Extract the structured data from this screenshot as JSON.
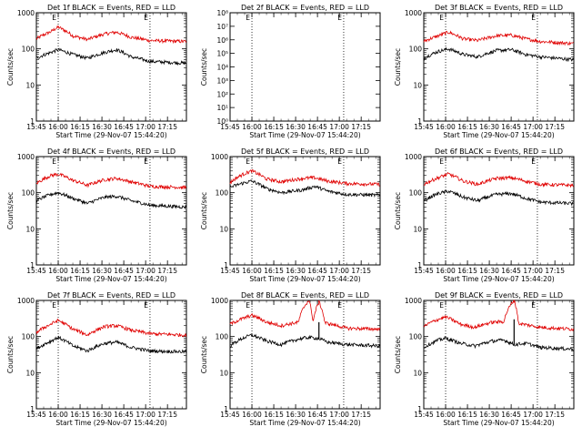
{
  "chart_data": {
    "type": "line",
    "layout": "grid 3x3",
    "yscale": "log",
    "ylabel": "Counts/sec",
    "xlabel": "Start Time (29-Nov-07 15:44:20)",
    "xticks": [
      "15:45",
      "16:00",
      "16:15",
      "16:30",
      "16:45",
      "17:00",
      "17:15"
    ],
    "xtick_minutes": [
      45,
      60,
      75,
      90,
      105,
      120,
      135
    ],
    "x_range_minutes": [
      45,
      148
    ],
    "vlines_minutes": [
      60,
      123
    ],
    "vline_marker": "E",
    "series_names": [
      "Events (black)",
      "LLD (red)"
    ],
    "colors": {
      "events": "#000000",
      "lld": "#e00000"
    },
    "panels": [
      {
        "title": "Det 1f BLACK = Events, RED = LLD",
        "ylim": [
          1,
          1000
        ],
        "yticks": [
          "1",
          "10",
          "100",
          "1000"
        ],
        "yexp": [
          0,
          1,
          2,
          3
        ],
        "events_points": [
          [
            45,
            55
          ],
          [
            55,
            80
          ],
          [
            60,
            95
          ],
          [
            70,
            70
          ],
          [
            80,
            55
          ],
          [
            92,
            80
          ],
          [
            100,
            95
          ],
          [
            110,
            60
          ],
          [
            123,
            45
          ],
          [
            148,
            40
          ]
        ],
        "lld_points": [
          [
            45,
            190
          ],
          [
            55,
            300
          ],
          [
            60,
            400
          ],
          [
            70,
            230
          ],
          [
            80,
            180
          ],
          [
            92,
            260
          ],
          [
            100,
            290
          ],
          [
            110,
            210
          ],
          [
            123,
            170
          ],
          [
            148,
            160
          ]
        ],
        "spikes": []
      },
      {
        "title": "Det 2f BLACK = Events, RED = LLD",
        "ylim": [
          1,
          100000000
        ],
        "yticks": [
          "10⁰",
          "10¹",
          "10²",
          "10³",
          "10⁴",
          "10⁵",
          "10⁶",
          "10⁷",
          "10⁸"
        ],
        "yexp": [
          0,
          1,
          2,
          3,
          4,
          5,
          6,
          7,
          8
        ],
        "events_points": [],
        "lld_points": [],
        "spikes": []
      },
      {
        "title": "Det 3f BLACK = Events, RED = LLD",
        "ylim": [
          1,
          1000
        ],
        "yticks": [
          "1",
          "10",
          "100",
          "1000"
        ],
        "yexp": [
          0,
          1,
          2,
          3
        ],
        "events_points": [
          [
            45,
            55
          ],
          [
            55,
            85
          ],
          [
            62,
            100
          ],
          [
            72,
            70
          ],
          [
            82,
            60
          ],
          [
            95,
            90
          ],
          [
            105,
            95
          ],
          [
            115,
            70
          ],
          [
            125,
            60
          ],
          [
            148,
            50
          ]
        ],
        "lld_points": [
          [
            45,
            160
          ],
          [
            55,
            230
          ],
          [
            62,
            290
          ],
          [
            72,
            190
          ],
          [
            82,
            170
          ],
          [
            95,
            230
          ],
          [
            105,
            240
          ],
          [
            115,
            190
          ],
          [
            125,
            160
          ],
          [
            148,
            140
          ]
        ],
        "spikes": []
      },
      {
        "title": "Det 4f BLACK = Events, RED = LLD",
        "ylim": [
          1,
          1000
        ],
        "yticks": [
          "1",
          "10",
          "100",
          "1000"
        ],
        "yexp": [
          0,
          1,
          2,
          3
        ],
        "events_points": [
          [
            45,
            60
          ],
          [
            55,
            90
          ],
          [
            60,
            100
          ],
          [
            70,
            70
          ],
          [
            80,
            50
          ],
          [
            92,
            75
          ],
          [
            100,
            80
          ],
          [
            110,
            60
          ],
          [
            123,
            45
          ],
          [
            148,
            40
          ]
        ],
        "lld_points": [
          [
            45,
            180
          ],
          [
            55,
            300
          ],
          [
            60,
            330
          ],
          [
            70,
            220
          ],
          [
            80,
            160
          ],
          [
            92,
            230
          ],
          [
            100,
            250
          ],
          [
            110,
            200
          ],
          [
            123,
            150
          ],
          [
            148,
            140
          ]
        ],
        "spikes": []
      },
      {
        "title": "Det 5f BLACK = Events, RED = LLD",
        "ylim": [
          1,
          1000
        ],
        "yticks": [
          "1",
          "10",
          "100",
          "1000"
        ],
        "yexp": [
          0,
          1,
          2,
          3
        ],
        "events_points": [
          [
            45,
            140
          ],
          [
            55,
            190
          ],
          [
            60,
            210
          ],
          [
            70,
            130
          ],
          [
            80,
            100
          ],
          [
            95,
            120
          ],
          [
            103,
            150
          ],
          [
            112,
            110
          ],
          [
            125,
            90
          ],
          [
            148,
            85
          ]
        ],
        "lld_points": [
          [
            45,
            190
          ],
          [
            55,
            340
          ],
          [
            60,
            400
          ],
          [
            70,
            240
          ],
          [
            80,
            200
          ],
          [
            95,
            250
          ],
          [
            103,
            260
          ],
          [
            112,
            210
          ],
          [
            125,
            180
          ],
          [
            148,
            170
          ]
        ],
        "spikes": []
      },
      {
        "title": "Det 6f BLACK = Events, RED = LLD",
        "ylim": [
          1,
          1000
        ],
        "yticks": [
          "1",
          "10",
          "100",
          "1000"
        ],
        "yexp": [
          0,
          1,
          2,
          3
        ],
        "events_points": [
          [
            45,
            60
          ],
          [
            55,
            95
          ],
          [
            62,
            110
          ],
          [
            72,
            75
          ],
          [
            82,
            60
          ],
          [
            95,
            90
          ],
          [
            105,
            95
          ],
          [
            115,
            70
          ],
          [
            125,
            55
          ],
          [
            148,
            50
          ]
        ],
        "lld_points": [
          [
            45,
            170
          ],
          [
            55,
            260
          ],
          [
            62,
            330
          ],
          [
            72,
            210
          ],
          [
            82,
            170
          ],
          [
            95,
            250
          ],
          [
            105,
            260
          ],
          [
            115,
            210
          ],
          [
            125,
            170
          ],
          [
            148,
            160
          ]
        ],
        "spikes": []
      },
      {
        "title": "Det 7f BLACK = Events, RED = LLD",
        "ylim": [
          1,
          1000
        ],
        "yticks": [
          "1",
          "10",
          "100",
          "1000"
        ],
        "yexp": [
          0,
          1,
          2,
          3
        ],
        "events_points": [
          [
            45,
            45
          ],
          [
            55,
            75
          ],
          [
            60,
            95
          ],
          [
            70,
            55
          ],
          [
            80,
            40
          ],
          [
            92,
            65
          ],
          [
            100,
            70
          ],
          [
            110,
            50
          ],
          [
            123,
            40
          ],
          [
            148,
            38
          ]
        ],
        "lld_points": [
          [
            45,
            130
          ],
          [
            55,
            220
          ],
          [
            60,
            280
          ],
          [
            70,
            160
          ],
          [
            80,
            110
          ],
          [
            92,
            190
          ],
          [
            100,
            200
          ],
          [
            110,
            150
          ],
          [
            123,
            120
          ],
          [
            148,
            110
          ]
        ],
        "spikes": []
      },
      {
        "title": "Det 8f BLACK = Events, RED = LLD",
        "ylim": [
          1,
          1000
        ],
        "yticks": [
          "1",
          "10",
          "100",
          "1000"
        ],
        "yexp": [
          0,
          1,
          2,
          3
        ],
        "events_points": [
          [
            45,
            55
          ],
          [
            55,
            95
          ],
          [
            60,
            110
          ],
          [
            70,
            75
          ],
          [
            80,
            60
          ],
          [
            92,
            85
          ],
          [
            99,
            95
          ],
          [
            105,
            90
          ],
          [
            112,
            70
          ],
          [
            125,
            60
          ],
          [
            148,
            55
          ]
        ],
        "lld_points": [
          [
            45,
            220
          ],
          [
            55,
            330
          ],
          [
            60,
            390
          ],
          [
            70,
            250
          ],
          [
            80,
            200
          ],
          [
            92,
            250
          ],
          [
            99,
            1000
          ],
          [
            102,
            240
          ],
          [
            106,
            900
          ],
          [
            110,
            240
          ],
          [
            125,
            170
          ],
          [
            148,
            160
          ]
        ],
        "spikes": [
          {
            "x": 99,
            "series": "lld",
            "top": 1000
          },
          {
            "x": 106,
            "series": "lld",
            "top": 1000
          },
          {
            "x": 106,
            "series": "events",
            "top": 250
          }
        ]
      },
      {
        "title": "Det 9f BLACK = Events, RED = LLD",
        "ylim": [
          1,
          1000
        ],
        "yticks": [
          "1",
          "10",
          "100",
          "1000"
        ],
        "yexp": [
          0,
          1,
          2,
          3
        ],
        "events_points": [
          [
            45,
            50
          ],
          [
            55,
            80
          ],
          [
            60,
            90
          ],
          [
            70,
            65
          ],
          [
            80,
            55
          ],
          [
            92,
            75
          ],
          [
            100,
            80
          ],
          [
            107,
            60
          ],
          [
            115,
            65
          ],
          [
            125,
            50
          ],
          [
            148,
            45
          ]
        ],
        "lld_points": [
          [
            45,
            190
          ],
          [
            55,
            300
          ],
          [
            60,
            350
          ],
          [
            70,
            220
          ],
          [
            80,
            180
          ],
          [
            92,
            250
          ],
          [
            100,
            260
          ],
          [
            107,
            1000
          ],
          [
            110,
            230
          ],
          [
            125,
            180
          ],
          [
            148,
            160
          ]
        ],
        "spikes": [
          {
            "x": 107,
            "series": "lld",
            "top": 1000
          },
          {
            "x": 107,
            "series": "events",
            "top": 300
          }
        ]
      }
    ]
  }
}
